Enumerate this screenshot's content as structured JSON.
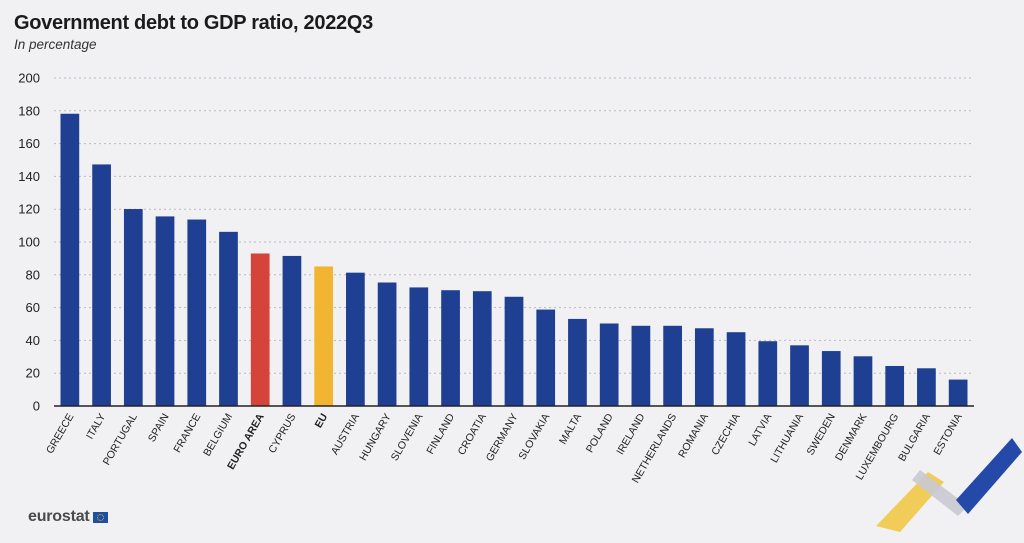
{
  "page": {
    "title": "Government debt to GDP ratio, 2022Q3",
    "subtitle": "In percentage",
    "logo_text": "eurostat",
    "background_color": "#f1f1f4"
  },
  "chart_data": {
    "type": "bar",
    "title": "Government debt to GDP ratio, 2022Q3",
    "subtitle": "In percentage",
    "xlabel": "",
    "ylabel": "",
    "ylim": [
      0,
      200
    ],
    "yticks": [
      0,
      20,
      40,
      60,
      80,
      100,
      120,
      140,
      160,
      180,
      200
    ],
    "grid": true,
    "legend": "none",
    "categories": [
      "GREECE",
      "ITALY",
      "PORTUGAL",
      "SPAIN",
      "FRANCE",
      "BELGIUM",
      "EURO AREA",
      "CYPRUS",
      "EU",
      "AUSTRIA",
      "HUNGARY",
      "SLOVENIA",
      "FINLAND",
      "CROATIA",
      "GERMANY",
      "SLOVAKIA",
      "MALTA",
      "POLAND",
      "IRELAND",
      "NETHERLANDS",
      "ROMANIA",
      "CZECHIA",
      "LATVIA",
      "LITHUANIA",
      "SWEDEN",
      "DENMARK",
      "LUXEMBOURG",
      "BULGARIA",
      "ESTONIA"
    ],
    "values": [
      178.2,
      147.3,
      120.1,
      115.6,
      113.7,
      106.2,
      93.0,
      91.5,
      85.1,
      81.3,
      75.3,
      72.3,
      70.6,
      70.0,
      66.6,
      58.8,
      53.1,
      50.3,
      48.9,
      48.9,
      47.4,
      45.0,
      39.5,
      37.0,
      33.5,
      30.3,
      24.4,
      23.0,
      16.1
    ],
    "bold_categories": [
      "EURO AREA",
      "EU"
    ],
    "colors": {
      "default": "#1f3f92",
      "EURO AREA": "#d6433b",
      "EU": "#f2b531",
      "grid": "#b9b9c2",
      "axis": "#222222",
      "tick_label": "#222222"
    }
  }
}
